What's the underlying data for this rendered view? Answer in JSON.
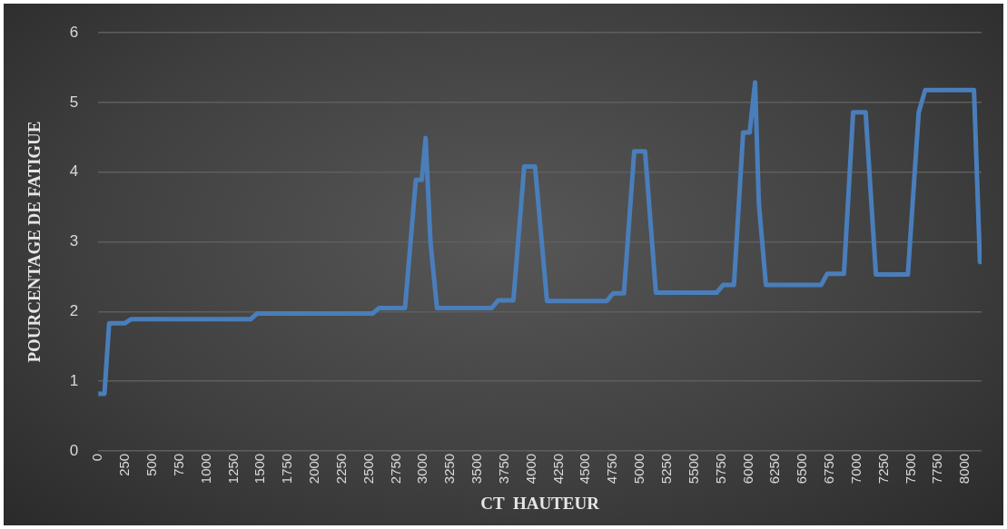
{
  "chart_data": {
    "type": "line",
    "xlabel": "CT  HAUTEUR",
    "ylabel": "POURCENTAGE DE FATIGUE",
    "x": [
      0,
      57,
      100,
      243,
      305,
      1405,
      1465,
      2530,
      2590,
      2830,
      2930,
      2985,
      3020,
      3065,
      3125,
      3630,
      3690,
      3830,
      3930,
      4030,
      4140,
      4690,
      4750,
      4850,
      4945,
      5045,
      5145,
      5705,
      5765,
      5865,
      5950,
      6010,
      6060,
      6095,
      6160,
      6670,
      6725,
      6880,
      6965,
      7080,
      7175,
      7470,
      7570,
      7630,
      8080,
      8135
    ],
    "series": [
      {
        "color": "#4a7ebb",
        "values": [
          0.82,
          0.82,
          1.83,
          1.83,
          1.89,
          1.89,
          1.97,
          1.97,
          2.05,
          2.05,
          3.89,
          3.89,
          4.49,
          3.0,
          2.05,
          2.05,
          2.16,
          2.16,
          4.08,
          4.08,
          2.15,
          2.15,
          2.26,
          2.26,
          4.3,
          4.3,
          2.27,
          2.27,
          2.38,
          2.38,
          4.57,
          4.57,
          5.29,
          3.55,
          2.38,
          2.38,
          2.54,
          2.54,
          4.86,
          4.86,
          2.53,
          2.53,
          4.86,
          5.18,
          5.18,
          2.71
        ]
      }
    ],
    "xlim": [
      0,
      8150
    ],
    "xticks": [
      0,
      250,
      500,
      750,
      1000,
      1250,
      1500,
      1750,
      2000,
      2250,
      2500,
      2750,
      3000,
      3250,
      3500,
      3750,
      4000,
      4250,
      4500,
      4750,
      5000,
      5250,
      5500,
      5750,
      6000,
      6250,
      6500,
      6750,
      7000,
      7250,
      7500,
      7750,
      8000
    ],
    "ylim": [
      0,
      6
    ],
    "yticks": [
      0,
      1,
      2,
      3,
      4,
      5,
      6
    ],
    "grid": "y",
    "legend": false,
    "marker": "none",
    "line_style": "solid"
  }
}
